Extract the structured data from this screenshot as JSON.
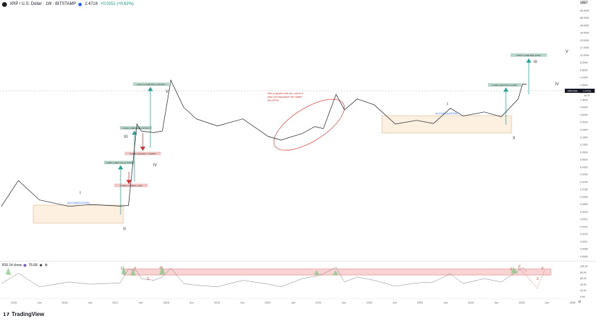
{
  "header": {
    "symbol": "XRP / U.S. Dollar · 1W · BITSTAMP",
    "price": "2.4718",
    "change": "+0.0151 (+0.62%)",
    "currency": "USD"
  },
  "rsi": {
    "label": "RSI 14 close",
    "value": "76.68"
  },
  "footer": {
    "brand": "TradingView"
  },
  "colors": {
    "accumulation_fill": "#fdf0e0",
    "accumulation_stroke": "#333333",
    "target_box": "#b7d6c9",
    "loss_box": "#f3c6c6",
    "arrow_green": "#26a69a",
    "rsi_band": "#f7d3d3",
    "rsi_band_stroke": "#e57373",
    "annotation_red": "#d32f2f",
    "ellipse_red": "#e53935"
  },
  "annotations": {
    "acc1": "ACCUMULATION",
    "acc2": "ACCUMULATION",
    "note": [
      "Not a proper bull run, since it",
      "was not impulsive nor made",
      "the ATHs."
    ],
    "waves": {
      "w1a": "I",
      "w2a": "II",
      "w3a": "III",
      "w4a": "IV",
      "w5a": "V",
      "w1b": "I",
      "w2b": "II",
      "w3b": "III",
      "w4b": "IV",
      "w5b": "V"
    },
    "rsi_marks": {
      "m1": "1",
      "m2": "2",
      "m3": "3",
      "m4": "4",
      "n1": "1",
      "n2": "2",
      "n3": "3",
      "n4": "4"
    },
    "boxes": {
      "b1": "1.2683 (+3863.1%) 12.5 BTC",
      "b2": "0.0044 (-44.96%) -1.38",
      "b3": "2.3093 (+985.62%) 3.37 BTC",
      "b4": "-0.3123 (-55.60%) -1.18 BTC",
      "b5": "2.6173 (+1359.81%) 3.65 BTC",
      "b6": "0.7289 (+641.57%) 2.2 BTC",
      "b7": "8.9577 (+828.20%) 9 BTC"
    }
  },
  "axis": {
    "price_ticks": [
      "USD",
      "95.0000",
      "68.0000",
      "48.0000",
      "34.0000",
      "24.0000",
      "17.0000",
      "12.0000",
      "8.2000",
      "5.8000",
      "4.1000",
      "2.9000",
      "2.0000",
      "1.3000",
      "0.9000",
      "0.6000",
      "0.4200",
      "0.2900",
      "0.1900",
      "0.1300",
      "0.0900",
      "0.0620",
      "0.0420",
      "0.0290",
      "0.0200",
      "0.0135",
      "0.0090",
      "0.0065",
      "0.0045",
      "0.0031",
      "0.0022",
      "0.0015",
      "0.0011",
      "0.0008",
      "0.0005"
    ],
    "price_tag_symbol": "XRPUSD",
    "price_tag_value": "2.4718",
    "price_tag_time": "5d 7h",
    "rsi_ticks": [
      "100.00",
      "80.00",
      "60.00",
      "40.00",
      "20.00",
      "0.00"
    ],
    "time_labels": [
      "2015",
      "Jun",
      "2016",
      "Jun",
      "2017",
      "Jun",
      "2018",
      "Jun",
      "2019",
      "Jun",
      "2020",
      "Jun",
      "2021",
      "Jun",
      "2022",
      "Jun",
      "2023",
      "Jun",
      "2024",
      "Jun",
      "2025",
      "Jun",
      "2026"
    ]
  },
  "chart_data": {
    "type": "line",
    "title": "XRP / U.S. Dollar · 1W · BITSTAMP",
    "xlabel": "",
    "ylabel": "",
    "y_scale": "log",
    "ylim": [
      0.0005,
      95
    ],
    "x": [
      "2014-09",
      "2015-01",
      "2015-06",
      "2016-01",
      "2016-06",
      "2017-01",
      "2017-03",
      "2017-05",
      "2017-06",
      "2017-09",
      "2017-11",
      "2018-01",
      "2018-04",
      "2018-07",
      "2018-12",
      "2019-06",
      "2019-12",
      "2020-03",
      "2020-08",
      "2020-11",
      "2021-01",
      "2021-04",
      "2021-06",
      "2021-09",
      "2022-01",
      "2022-06",
      "2022-11",
      "2023-03",
      "2023-07",
      "2023-10",
      "2024-03",
      "2024-07",
      "2024-11",
      "2024-12",
      "2025-01"
    ],
    "series": [
      {
        "name": "XRPUSD",
        "values": [
          0.0062,
          0.022,
          0.0085,
          0.0062,
          0.0068,
          0.0063,
          0.0065,
          0.35,
          0.25,
          0.23,
          0.25,
          3.0,
          0.8,
          0.45,
          0.32,
          0.45,
          0.19,
          0.16,
          0.22,
          0.31,
          0.28,
          1.5,
          0.7,
          1.2,
          0.9,
          0.35,
          0.42,
          0.36,
          0.76,
          0.52,
          0.63,
          0.5,
          1.2,
          2.5,
          2.47
        ]
      }
    ],
    "rsi_series": {
      "name": "RSI 14 close",
      "values": [
        40,
        72,
        30,
        45,
        38,
        42,
        85,
        78,
        55,
        50,
        60,
        88,
        40,
        35,
        30,
        50,
        38,
        30,
        55,
        62,
        70,
        90,
        45,
        60,
        50,
        32,
        42,
        45,
        70,
        40,
        55,
        45,
        80,
        90,
        76.68
      ],
      "band": [
        30,
        42
      ],
      "ylim": [
        0,
        100
      ]
    }
  }
}
